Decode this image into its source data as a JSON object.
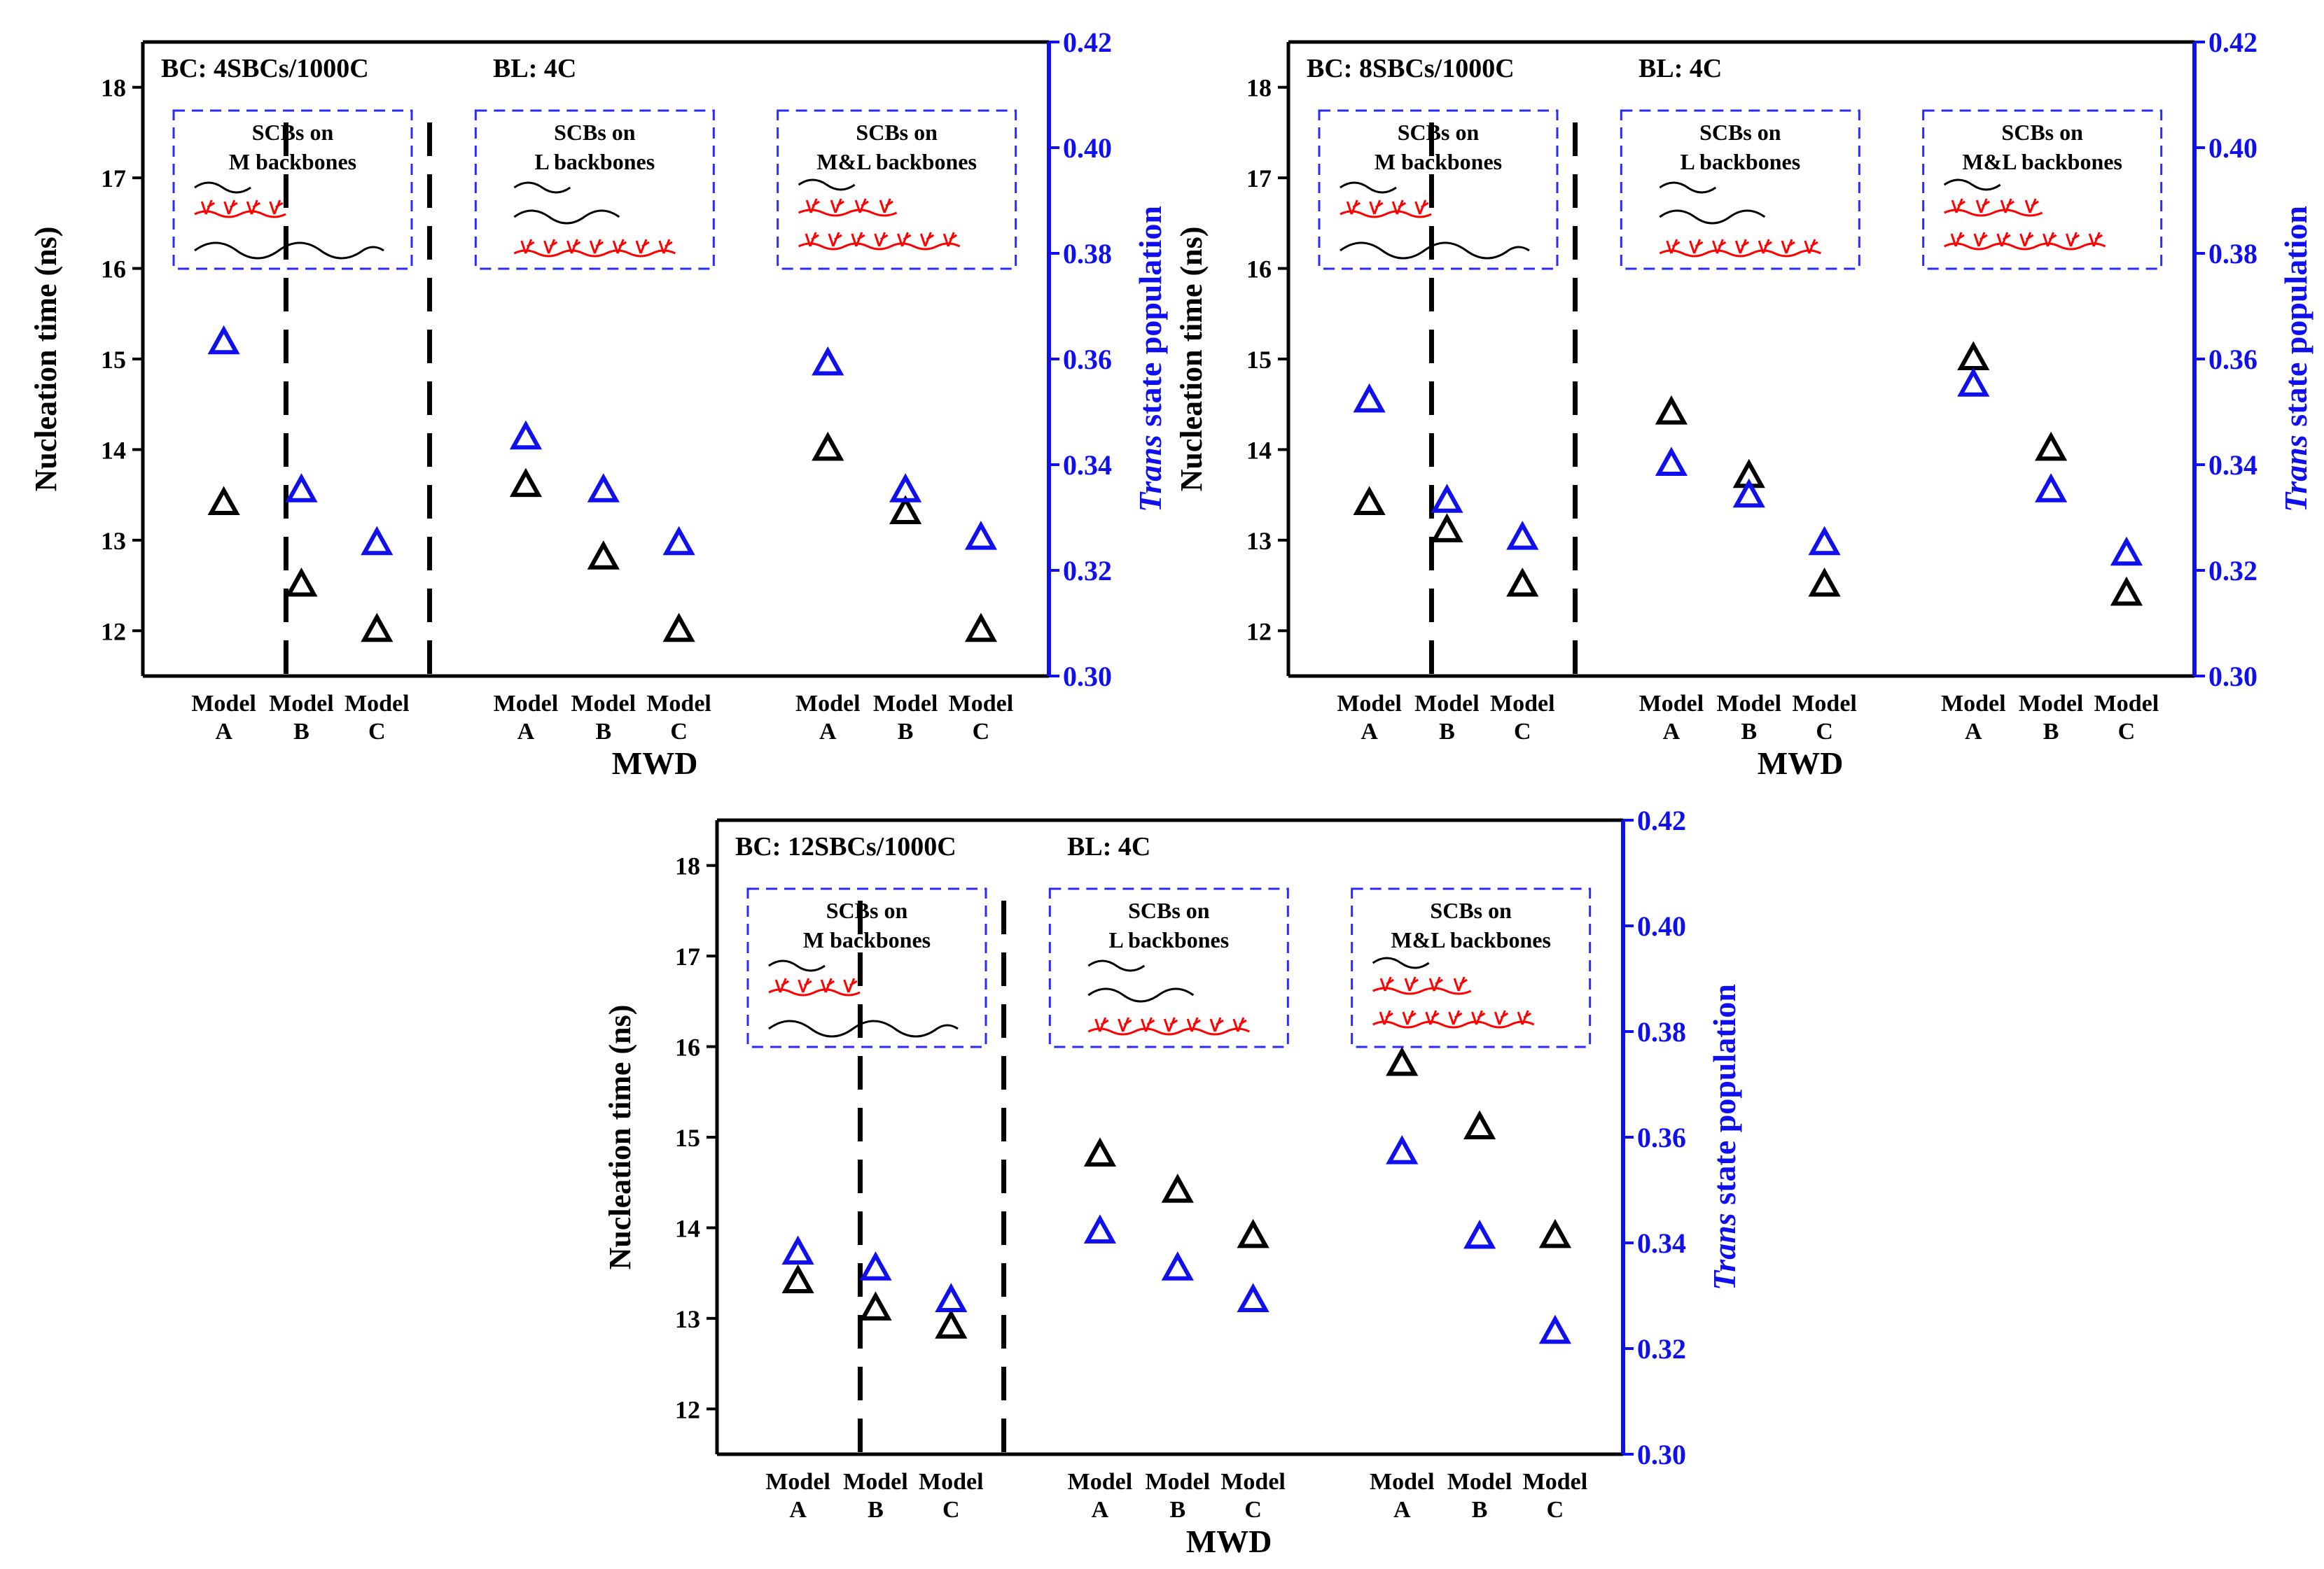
{
  "colors": {
    "black": "#000000",
    "blue": "#1010ee",
    "red": "#ff0000",
    "inset_border": "#2a2aff"
  },
  "axis_text": {
    "left_ylabel": "Nucleation time (ns)",
    "right_ylabel_italic": "Trans",
    "right_ylabel_rest": " state population",
    "xlabel": "MWD",
    "model_word": "Model"
  },
  "chart_data": [
    {
      "type": "scatter",
      "title": "BC: 4SBCs/1000C",
      "subtitle": "BL: 4C",
      "xlabel": "MWD",
      "ylabel": "Nucleation time (ns)",
      "ylabel_right": "Trans state population",
      "ylim": [
        11.5,
        18.5
      ],
      "ylim_right": [
        0.3,
        0.42
      ],
      "yticks": [
        "12",
        "13",
        "14",
        "15",
        "16",
        "17",
        "18"
      ],
      "yticks_right": [
        "0.30",
        "0.32",
        "0.34",
        "0.36",
        "0.38",
        "0.40",
        "0.42"
      ],
      "groups": [
        {
          "label_top": "SCBs on",
          "label_bottom": "M backbones",
          "categories": [
            "A",
            "B",
            "C"
          ],
          "nucleation_time": [
            13.4,
            12.5,
            12.0
          ],
          "trans_population": [
            0.363,
            0.335,
            0.325
          ]
        },
        {
          "label_top": "SCBs on",
          "label_bottom": "L backbones",
          "categories": [
            "A",
            "B",
            "C"
          ],
          "nucleation_time": [
            13.6,
            12.8,
            12.0
          ],
          "trans_population": [
            0.345,
            0.335,
            0.325
          ]
        },
        {
          "label_top": "SCBs on",
          "label_bottom": "M&L backbones",
          "categories": [
            "A",
            "B",
            "C"
          ],
          "nucleation_time": [
            14.0,
            13.3,
            12.0
          ],
          "trans_population": [
            0.359,
            0.335,
            0.326
          ]
        }
      ]
    },
    {
      "type": "scatter",
      "title": "BC: 8SBCs/1000C",
      "subtitle": "BL: 4C",
      "xlabel": "MWD",
      "ylabel": "Nucleation time (ns)",
      "ylabel_right": "Trans state population",
      "ylim": [
        11.5,
        18.5
      ],
      "ylim_right": [
        0.3,
        0.42
      ],
      "yticks": [
        "12",
        "13",
        "14",
        "15",
        "16",
        "17",
        "18"
      ],
      "yticks_right": [
        "0.30",
        "0.32",
        "0.34",
        "0.36",
        "0.38",
        "0.40",
        "0.42"
      ],
      "groups": [
        {
          "label_top": "SCBs on",
          "label_bottom": "M backbones",
          "categories": [
            "A",
            "B",
            "C"
          ],
          "nucleation_time": [
            13.4,
            13.1,
            12.5
          ],
          "trans_population": [
            0.352,
            0.333,
            0.326
          ]
        },
        {
          "label_top": "SCBs on",
          "label_bottom": "L backbones",
          "categories": [
            "A",
            "B",
            "C"
          ],
          "nucleation_time": [
            14.4,
            13.7,
            12.5
          ],
          "trans_population": [
            0.34,
            0.334,
            0.325
          ]
        },
        {
          "label_top": "SCBs on",
          "label_bottom": "M&L backbones",
          "categories": [
            "A",
            "B",
            "C"
          ],
          "nucleation_time": [
            15.0,
            14.0,
            12.4
          ],
          "trans_population": [
            0.355,
            0.335,
            0.323
          ]
        }
      ]
    },
    {
      "type": "scatter",
      "title": "BC: 12SBCs/1000C",
      "subtitle": "BL: 4C",
      "xlabel": "MWD",
      "ylabel": "Nucleation time (ns)",
      "ylabel_right": "Trans state population",
      "ylim": [
        11.5,
        18.5
      ],
      "ylim_right": [
        0.3,
        0.42
      ],
      "yticks": [
        "12",
        "13",
        "14",
        "15",
        "16",
        "17",
        "18"
      ],
      "yticks_right": [
        "0.30",
        "0.32",
        "0.34",
        "0.36",
        "0.38",
        "0.40",
        "0.42"
      ],
      "groups": [
        {
          "label_top": "SCBs on",
          "label_bottom": "M backbones",
          "categories": [
            "A",
            "B",
            "C"
          ],
          "nucleation_time": [
            13.4,
            13.1,
            12.9
          ],
          "trans_population": [
            0.338,
            0.335,
            0.329
          ]
        },
        {
          "label_top": "SCBs on",
          "label_bottom": "L backbones",
          "categories": [
            "A",
            "B",
            "C"
          ],
          "nucleation_time": [
            14.8,
            14.4,
            13.9
          ],
          "trans_population": [
            0.342,
            0.335,
            0.329
          ]
        },
        {
          "label_top": "SCBs on",
          "label_bottom": "M&L backbones",
          "categories": [
            "A",
            "B",
            "C"
          ],
          "nucleation_time": [
            15.8,
            15.1,
            13.9
          ],
          "trans_population": [
            0.357,
            0.341,
            0.323
          ]
        }
      ]
    }
  ]
}
